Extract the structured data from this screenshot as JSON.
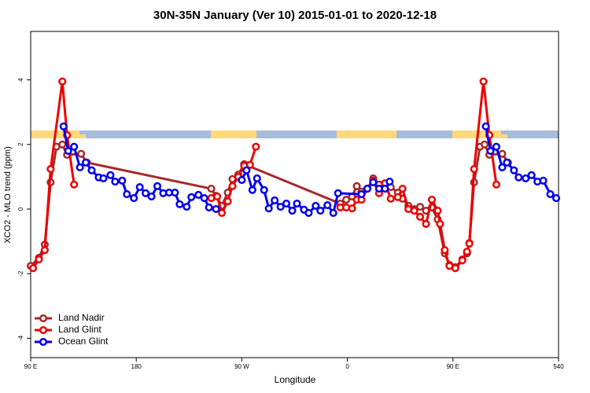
{
  "chart_data": {
    "type": "line",
    "title": "30N-35N January (Ver 10)   2015-01-01 to 2020-12-18",
    "xlabel": "Longitude",
    "ylabel": "XCO2 - MLO trend (ppm)",
    "xlim": [
      90,
      540
    ],
    "ylim": [
      -4.6,
      5.5
    ],
    "xticks": [
      {
        "value": 90,
        "label": "90 E"
      },
      180,
      {
        "value": 270,
        "label": "90 W"
      },
      {
        "value": 360,
        "label": "0"
      },
      {
        "value": 450,
        "label": "90 E"
      },
      540
    ],
    "yticks": [
      -4,
      -2,
      0,
      2,
      4
    ],
    "legend": "bottomleft",
    "series": [
      {
        "name": "Land Nadir",
        "color": "#a52a2a",
        "x": [
          90,
          97,
          102,
          107,
          112,
          117,
          121,
          133,
          138,
          244,
          248,
          253,
          258,
          262,
          267,
          272,
          354,
          359,
          364,
          368,
          372,
          377,
          382,
          387,
          392,
          397,
          403,
          407,
          412,
          417,
          422,
          427,
          432,
          437,
          443,
          447,
          452,
          458,
          462,
          464,
          468,
          473,
          477,
          481,
          492,
          497
        ],
        "values": [
          -1.76,
          -1.51,
          -1.1,
          0.83,
          1.93,
          2.0,
          1.68,
          1.71,
          1.44,
          0.63,
          0.41,
          0.1,
          0.51,
          0.93,
          1.07,
          1.39,
          0.17,
          0.29,
          0.39,
          0.71,
          0.54,
          0.63,
          0.95,
          0.76,
          0.63,
          0.68,
          0.51,
          0.32,
          0.1,
          0.0,
          0.07,
          -0.05,
          0.05,
          -0.32,
          -1.37,
          -1.73,
          -1.8,
          -1.56,
          -1.37,
          -1.05,
          0.83,
          1.93,
          2.0,
          1.68,
          1.71,
          1.44
        ]
      },
      {
        "name": "Land Glint",
        "color": "#ee0000",
        "x": [
          92,
          97,
          102,
          107,
          117,
          121,
          127,
          240,
          244,
          249,
          253,
          258,
          262,
          267,
          272,
          277,
          282,
          350,
          354,
          359,
          364,
          368,
          372,
          377,
          382,
          387,
          392,
          397,
          403,
          407,
          412,
          417,
          422,
          427,
          432,
          437,
          439,
          443,
          447,
          452,
          458,
          462,
          464,
          468,
          476,
          481,
          487
        ],
        "values": [
          -1.83,
          -1.56,
          -1.27,
          1.24,
          3.95,
          2.29,
          0.76,
          null,
          0.34,
          0.39,
          -0.12,
          0.24,
          0.71,
          1.0,
          1.34,
          1.37,
          1.93,
          null,
          0.05,
          0.05,
          0.02,
          0.29,
          0.29,
          0.63,
          0.88,
          0.49,
          0.8,
          0.32,
          0.37,
          0.63,
          0.0,
          -0.05,
          -0.24,
          -0.46,
          0.29,
          -0.05,
          -0.46,
          -1.27,
          -1.76,
          -1.83,
          -1.59,
          -1.32,
          -1.07,
          1.24,
          3.95,
          2.29,
          0.76
        ]
      },
      {
        "name": "Ocean Glint",
        "color": "#0000ee",
        "x": [
          118,
          122,
          127,
          132,
          137,
          142,
          148,
          152,
          158,
          162,
          168,
          172,
          178,
          183,
          188,
          193,
          198,
          203,
          208,
          213,
          217,
          223,
          227,
          233,
          238,
          242,
          248,
          260,
          270,
          274,
          279,
          283,
          289,
          293,
          298,
          303,
          308,
          313,
          317,
          323,
          327,
          333,
          337,
          343,
          348,
          352,
          372,
          377,
          382,
          387,
          392,
          396,
          440,
          478,
          482,
          487,
          492,
          496,
          502,
          506,
          512,
          517,
          522,
          527,
          533,
          538
        ],
        "values": [
          2.56,
          1.8,
          1.93,
          1.29,
          1.44,
          1.2,
          0.98,
          0.95,
          1.05,
          0.85,
          0.88,
          0.46,
          0.34,
          0.68,
          0.49,
          0.39,
          0.71,
          0.49,
          0.51,
          0.51,
          0.15,
          0.07,
          0.37,
          0.44,
          0.34,
          0.05,
          0.0,
          null,
          0.9,
          1.2,
          0.59,
          0.95,
          0.59,
          0.02,
          0.27,
          0.07,
          0.17,
          -0.05,
          0.17,
          -0.02,
          -0.12,
          0.1,
          -0.05,
          0.12,
          -0.12,
          0.49,
          0.46,
          0.63,
          0.83,
          0.63,
          0.63,
          0.85,
          null,
          2.56,
          1.8,
          1.93,
          1.29,
          1.44,
          1.2,
          0.98,
          0.95,
          1.05,
          0.85,
          0.88,
          0.46,
          0.34
        ]
      }
    ]
  }
}
